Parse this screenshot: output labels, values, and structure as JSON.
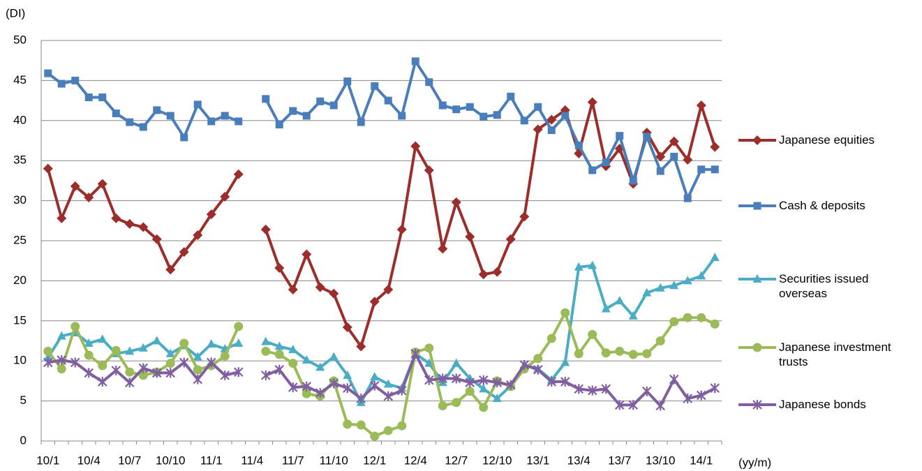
{
  "chart_data": {
    "type": "line",
    "y_label": "(DI)",
    "x_label": "(yy/m)",
    "categories": [
      "10/1",
      null,
      null,
      "10/4",
      null,
      null,
      "10/7",
      null,
      null,
      "10/10",
      null,
      null,
      "11/1",
      null,
      null,
      "11/4",
      null,
      null,
      "11/7",
      null,
      null,
      "11/10",
      null,
      null,
      "12/1",
      null,
      null,
      "12/4",
      null,
      null,
      "12/7",
      null,
      null,
      "12/10",
      null,
      null,
      "13/1",
      null,
      null,
      "13/4",
      null,
      null,
      "13/7",
      null,
      null,
      "13/10",
      null,
      null,
      "14/1",
      null
    ],
    "ylim": [
      0,
      50
    ],
    "yticks": [
      0,
      5,
      10,
      15,
      20,
      25,
      30,
      35,
      40,
      45,
      50
    ],
    "grid": true,
    "legend": "right",
    "series": [
      {
        "name": "Japanese equities",
        "color": "#9b2d2a",
        "marker": "diamond",
        "values": [
          34.0,
          27.8,
          31.8,
          30.4,
          32.1,
          27.8,
          27.1,
          26.7,
          25.2,
          21.4,
          23.6,
          25.7,
          28.3,
          30.5,
          33.3,
          null,
          26.4,
          21.6,
          18.9,
          23.3,
          19.2,
          18.4,
          14.2,
          11.8,
          17.4,
          18.9,
          26.4,
          36.8,
          33.8,
          24.0,
          29.8,
          25.5,
          20.8,
          21.1,
          25.2,
          28.0,
          38.9,
          40.1,
          41.3,
          35.9,
          42.3,
          34.3,
          36.5,
          32.1,
          38.5,
          35.5,
          37.4,
          35.1,
          41.9,
          36.7
        ]
      },
      {
        "name": "Cash & deposits",
        "color": "#4a7ebb",
        "marker": "square",
        "values": [
          45.9,
          44.6,
          45.0,
          42.9,
          42.9,
          40.9,
          39.8,
          39.2,
          41.3,
          40.6,
          37.9,
          42.0,
          39.9,
          40.6,
          39.9,
          null,
          42.7,
          39.5,
          41.2,
          40.6,
          42.4,
          41.9,
          44.9,
          39.8,
          44.3,
          42.5,
          40.6,
          47.4,
          44.8,
          41.9,
          41.4,
          41.7,
          40.5,
          40.7,
          43.0,
          40.0,
          41.7,
          38.8,
          40.6,
          36.9,
          33.8,
          34.8,
          38.1,
          32.5,
          38.0,
          33.7,
          35.5,
          30.3,
          33.9,
          33.9
        ]
      },
      {
        "name": "Securities issued overseas",
        "color": "#4bacc6",
        "marker": "triangle",
        "values": [
          10.4,
          13.1,
          13.5,
          12.2,
          12.7,
          10.9,
          11.2,
          11.6,
          12.5,
          10.9,
          11.9,
          10.5,
          12.1,
          11.5,
          12.2,
          null,
          12.4,
          11.8,
          11.4,
          10.1,
          9.2,
          10.5,
          8.2,
          4.8,
          8.0,
          7.1,
          6.6,
          10.9,
          9.7,
          7.3,
          9.7,
          7.8,
          6.5,
          5.3,
          6.9,
          9.5,
          9.0,
          7.6,
          9.8,
          21.7,
          21.9,
          16.5,
          17.5,
          15.6,
          18.5,
          19.1,
          19.4,
          20.0,
          20.6,
          22.9
        ]
      },
      {
        "name": "Japanese investment trusts",
        "color": "#9bbb59",
        "marker": "circle",
        "values": [
          11.2,
          9.0,
          14.3,
          10.7,
          9.4,
          11.3,
          8.6,
          8.2,
          8.6,
          9.7,
          12.2,
          8.9,
          9.4,
          10.6,
          14.3,
          null,
          11.2,
          10.8,
          9.7,
          5.9,
          5.6,
          7.5,
          2.1,
          2.0,
          0.6,
          1.3,
          1.9,
          11.1,
          11.6,
          4.4,
          4.8,
          6.2,
          4.2,
          7.5,
          6.8,
          9.0,
          10.3,
          12.8,
          16.0,
          10.9,
          13.3,
          11.0,
          11.2,
          10.8,
          10.9,
          12.5,
          14.9,
          15.4,
          15.4,
          14.6
        ]
      },
      {
        "name": "Japanese bonds",
        "color": "#7f5fa0",
        "marker": "star",
        "values": [
          9.8,
          10.1,
          9.8,
          8.5,
          7.4,
          8.8,
          7.3,
          9.1,
          8.5,
          8.5,
          9.8,
          7.7,
          9.8,
          8.2,
          8.6,
          null,
          8.2,
          8.9,
          6.7,
          6.8,
          6.0,
          7.2,
          6.6,
          5.3,
          6.9,
          5.6,
          6.3,
          10.9,
          7.6,
          7.8,
          7.8,
          7.3,
          7.6,
          7.3,
          7.0,
          9.5,
          8.9,
          7.4,
          7.4,
          6.5,
          6.3,
          6.5,
          4.5,
          4.5,
          6.2,
          4.4,
          7.7,
          5.3,
          5.7,
          6.6
        ]
      }
    ]
  }
}
